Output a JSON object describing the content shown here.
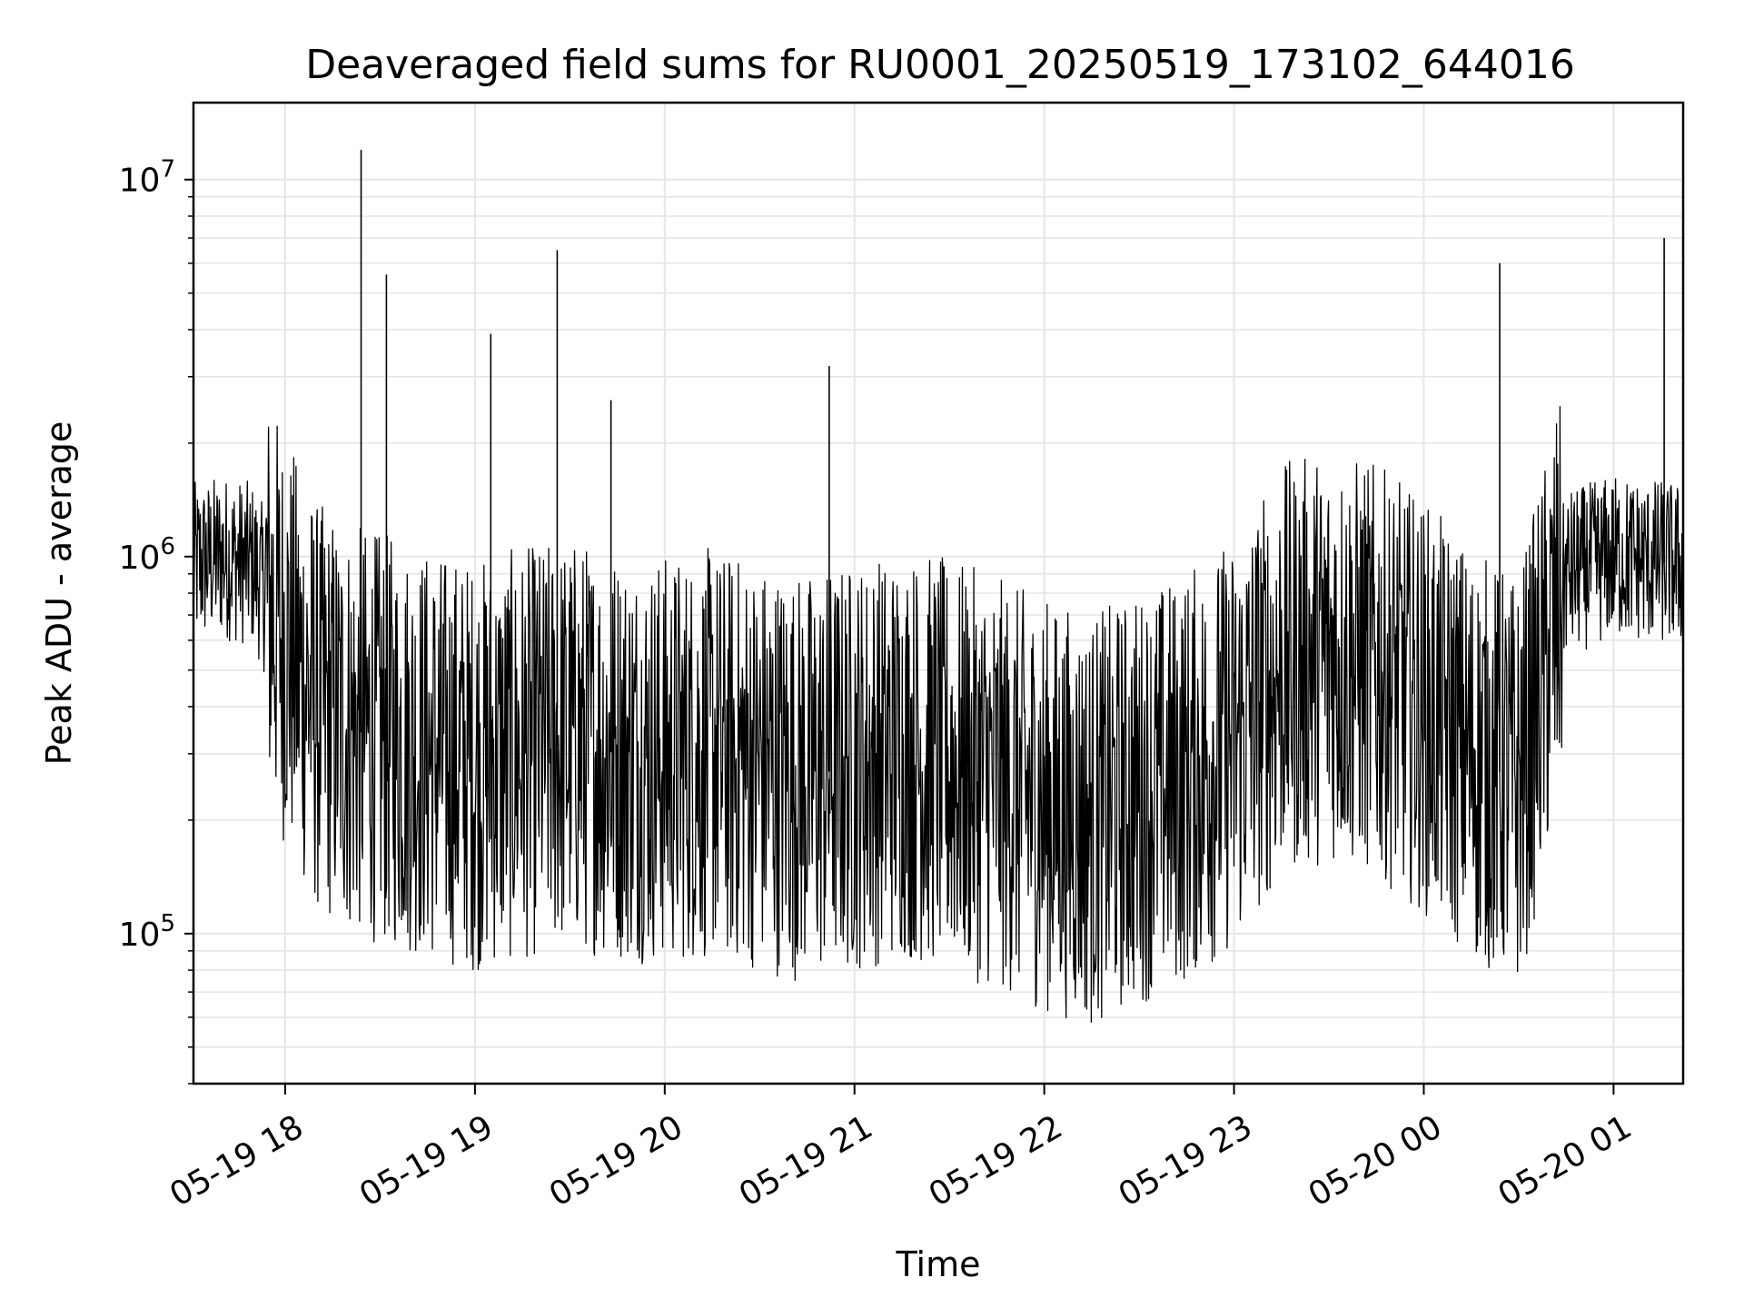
{
  "chart_data": {
    "type": "line",
    "title": "Deaveraged field sums for RU0001_20250519_173102_644016",
    "xlabel": "Time",
    "ylabel": "Peak ADU - average",
    "yscale": "log",
    "ylim": [
      40000,
      16000000
    ],
    "xlim": [
      "2025-05-19 17:31",
      "2025-05-20 01:22"
    ],
    "grid": true,
    "line_color": "#000000",
    "x_ticks": [
      "05-19 18",
      "05-19 19",
      "05-19 20",
      "05-19 21",
      "05-19 22",
      "05-19 23",
      "05-20 00",
      "05-20 01"
    ],
    "y_ticks": [
      {
        "base": "10",
        "exp": "5",
        "value": 100000
      },
      {
        "base": "10",
        "exp": "6",
        "value": 1000000
      },
      {
        "base": "10",
        "exp": "7",
        "value": 10000000
      }
    ],
    "series": [
      {
        "x": [
          "2025-05-19 17:31",
          "2025-05-19 17:40",
          "2025-05-19 17:50",
          "2025-05-19 18:00",
          "2025-05-19 18:10",
          "2025-05-19 18:20",
          "2025-05-19 18:30",
          "2025-05-19 18:45",
          "2025-05-19 19:00",
          "2025-05-19 19:15",
          "2025-05-19 19:30",
          "2025-05-19 19:45",
          "2025-05-19 20:00",
          "2025-05-19 20:15",
          "2025-05-19 20:30",
          "2025-05-19 20:45",
          "2025-05-19 21:00",
          "2025-05-19 21:15",
          "2025-05-19 21:30",
          "2025-05-19 21:45",
          "2025-05-19 22:00",
          "2025-05-19 22:15",
          "2025-05-19 22:30",
          "2025-05-19 22:45",
          "2025-05-19 23:00",
          "2025-05-19 23:15",
          "2025-05-19 23:30",
          "2025-05-19 23:45",
          "2025-05-20 00:00",
          "2025-05-20 00:15",
          "2025-05-20 00:30",
          "2025-05-20 00:45",
          "2025-05-20 01:00",
          "2025-05-20 01:22"
        ],
        "values": [
          950000,
          1000000,
          950000,
          600000,
          400000,
          350000,
          330000,
          300000,
          280000,
          300000,
          320000,
          300000,
          290000,
          300000,
          280000,
          260000,
          280000,
          300000,
          280000,
          250000,
          220000,
          200000,
          230000,
          260000,
          320000,
          500000,
          550000,
          500000,
          400000,
          300000,
          250000,
          900000,
          1000000,
          950000
        ]
      }
    ],
    "spikes": [
      {
        "x": "2025-05-19 18:24",
        "y": 12000000
      },
      {
        "x": "2025-05-19 18:32",
        "y": 5600000
      },
      {
        "x": "2025-05-19 19:05",
        "y": 3900000
      },
      {
        "x": "2025-05-19 19:26",
        "y": 6500000
      },
      {
        "x": "2025-05-19 19:43",
        "y": 2600000
      },
      {
        "x": "2025-05-19 20:52",
        "y": 3200000
      },
      {
        "x": "2025-05-20 00:24",
        "y": 6000000
      },
      {
        "x": "2025-05-20 01:16",
        "y": 7000000
      }
    ]
  }
}
